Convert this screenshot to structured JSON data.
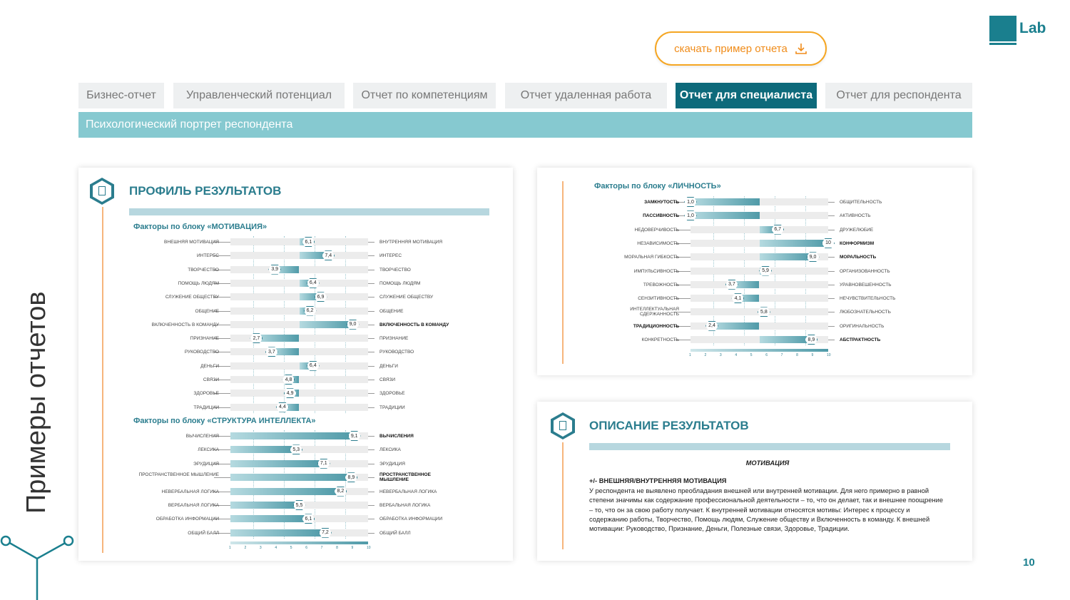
{
  "logo": {
    "text": "Lab"
  },
  "download_button": {
    "label": "скачать пример отчета",
    "icon": "download-icon"
  },
  "tabs": [
    {
      "label": "Бизнес-отчет",
      "active": false
    },
    {
      "label": "Управленческий потенциал",
      "active": false
    },
    {
      "label": "Отчет по компетенциям",
      "active": false
    },
    {
      "label": "Отчет удаленная работа",
      "active": false
    },
    {
      "label": "Отчет для специалиста",
      "active": true
    },
    {
      "label": "Отчет для респондента",
      "active": false
    }
  ],
  "subheader": "Психологический портрет респондента",
  "side_title": "Примеры отчетов",
  "page_number": "10",
  "profile": {
    "title": "ПРОФИЛЬ РЕЗУЛЬТАТОВ"
  },
  "description": {
    "title": "ОПИСАНИЕ РЕЗУЛЬТАТОВ",
    "section": "МОТИВАЦИЯ",
    "heading": "+/- ВНЕШНЯЯ/ВНУТРЕННЯЯ МОТИВАЦИЯ",
    "text": "У респондента не выявлено преобладания внешней или внутренней мотивации. Для него примерно в равной степени значимы как содержание профессиональной деятельности – то, что он делает, так и внешнее поощрение – то, что он за свою работу получает. К внутренней мотивации относятся мотивы: Интерес к процессу и содержанию работы, Творчество, Помощь людям, Служение обществу и Включенность в команду. К внешней мотивации: Руководство, Признание, Деньги, Полезные связи, Здоровье, Традиции."
  },
  "chart_data": [
    {
      "type": "bar",
      "title": "Факторы по блоку «МОТИВАЦИЯ»",
      "mode": "bipolar",
      "xlim": [
        1,
        10
      ],
      "ticks": [
        1,
        2,
        3,
        4,
        5,
        6,
        7,
        8,
        9,
        10
      ],
      "rows": [
        {
          "left": "ВНЕШНЯЯ МОТИВАЦИЯ",
          "right": "ВНУТРЕННЯЯ МОТИВАЦИЯ",
          "value": 6.1,
          "value_label": "6,1"
        },
        {
          "left": "ИНТЕРЕС",
          "right": "ИНТЕРЕС",
          "value": 7.4,
          "value_label": "7,4"
        },
        {
          "left": "ТВОРЧЕСТВО",
          "right": "ТВОРЧЕСТВО",
          "value": 3.9,
          "value_label": "3,9"
        },
        {
          "left": "ПОМОЩЬ ЛЮДЯМ",
          "right": "ПОМОЩЬ ЛЮДЯМ",
          "value": 6.4,
          "value_label": "6,4"
        },
        {
          "left": "СЛУЖЕНИЕ ОБЩЕСТВУ",
          "right": "СЛУЖЕНИЕ ОБЩЕСТВУ",
          "value": 6.9,
          "value_label": "6,9"
        },
        {
          "left": "ОБЩЕНИЕ",
          "right": "ОБЩЕНИЕ",
          "value": 6.2,
          "value_label": "6,2"
        },
        {
          "left": "ВКЛЮЧЕННОСТЬ В КОМАНДУ",
          "right": "ВКЛЮЧЕННОСТЬ В КОМАНДУ",
          "value": 9.0,
          "value_label": "9,0",
          "bold": "right"
        },
        {
          "left": "ПРИЗНАНИЕ",
          "right": "ПРИЗНАНИЕ",
          "value": 2.7,
          "value_label": "2,7"
        },
        {
          "left": "РУКОВОДСТВО",
          "right": "РУКОВОДСТВО",
          "value": 3.7,
          "value_label": "3,7"
        },
        {
          "left": "ДЕНЬГИ",
          "right": "ДЕНЬГИ",
          "value": 6.4,
          "value_label": "6,4"
        },
        {
          "left": "СВЯЗИ",
          "right": "СВЯЗИ",
          "value": 4.8,
          "value_label": "4,8"
        },
        {
          "left": "ЗДОРОВЬЕ",
          "right": "ЗДОРОВЬЕ",
          "value": 4.9,
          "value_label": "4,9"
        },
        {
          "left": "ТРАДИЦИИ",
          "right": "ТРАДИЦИИ",
          "value": 4.4,
          "value_label": "4,4"
        }
      ]
    },
    {
      "type": "bar",
      "title": "Факторы по блоку «СТРУКТУРА ИНТЕЛЛЕКТА»",
      "mode": "from-min",
      "xlim": [
        1,
        10
      ],
      "ticks": [
        1,
        2,
        3,
        4,
        5,
        6,
        7,
        8,
        9,
        10
      ],
      "rows": [
        {
          "left": "ВЫЧИСЛЕНИЯ",
          "right": "ВЫЧИСЛЕНИЯ",
          "value": 9.1,
          "value_label": "9,1",
          "bold": "right"
        },
        {
          "left": "ЛЕКСИКА",
          "right": "ЛЕКСИКА",
          "value": 5.3,
          "value_label": "5,3"
        },
        {
          "left": "ЭРУДИЦИЯ",
          "right": "ЭРУДИЦИЯ",
          "value": 7.1,
          "value_label": "7,1"
        },
        {
          "left": "ПРОСТРАНСТВЕННОЕ МЫШЛЕНИЕ",
          "right": "ПРОСТРАНСТВЕННОЕ МЫШЛЕНИЕ",
          "value": 8.9,
          "value_label": "8,9",
          "bold": "right"
        },
        {
          "left": "НЕВЕРБАЛЬНАЯ ЛОГИКА",
          "right": "НЕВЕРБАЛЬНАЯ ЛОГИКА",
          "value": 8.2,
          "value_label": "8,2"
        },
        {
          "left": "ВЕРБАЛЬНАЯ ЛОГИКА",
          "right": "ВЕРБАЛЬНАЯ ЛОГИКА",
          "value": 5.5,
          "value_label": "5,5"
        },
        {
          "left": "ОБРАБОТКА ИНФОРМАЦИИ",
          "right": "ОБРАБОТКА ИНФОРМАЦИИ",
          "value": 6.1,
          "value_label": "6,1"
        },
        {
          "left": "ОБЩИЙ БАЛЛ",
          "right": "ОБЩИЙ БАЛЛ",
          "value": 7.2,
          "value_label": "7,2"
        }
      ]
    },
    {
      "type": "bar",
      "title": "Факторы по блоку «ЛИЧНОСТЬ»",
      "mode": "bipolar",
      "xlim": [
        1,
        10
      ],
      "ticks": [
        1,
        2,
        3,
        4,
        5,
        6,
        7,
        8,
        9,
        10
      ],
      "rows": [
        {
          "left": "ЗАМКНУТОСТЬ",
          "right": "ОБЩИТЕЛЬНОСТЬ",
          "value": 1.0,
          "value_label": "1,0",
          "bold": "left"
        },
        {
          "left": "ПАССИВНОСТЬ",
          "right": "АКТИВНОСТЬ",
          "value": 1.0,
          "value_label": "1,0",
          "bold": "left"
        },
        {
          "left": "НЕДОВЕРЧИВОСТЬ",
          "right": "ДРУЖЕЛЮБИЕ",
          "value": 6.7,
          "value_label": "6,7"
        },
        {
          "left": "НЕЗАВИСИМОСТЬ",
          "right": "КОНФОРМИЗМ",
          "value": 10,
          "value_label": "10",
          "bold": "right"
        },
        {
          "left": "МОРАЛЬНАЯ ГИБКОСТЬ",
          "right": "МОРАЛЬНОСТЬ",
          "value": 9.0,
          "value_label": "9,0",
          "bold": "right"
        },
        {
          "left": "ИМПУЛЬСИВНОСТЬ",
          "right": "ОРГАНИЗОВАННОСТЬ",
          "value": 5.9,
          "value_label": "5,9"
        },
        {
          "left": "ТРЕВОЖНОСТЬ",
          "right": "УРАВНОВЕШЕННОСТЬ",
          "value": 3.7,
          "value_label": "3,7"
        },
        {
          "left": "СЕНЗИТИВНОСТЬ",
          "right": "НЕЧУВСТВИТЕЛЬНОСТЬ",
          "value": 4.1,
          "value_label": "4,1"
        },
        {
          "left": "ИНТЕЛЛЕКТУАЛЬНАЯ СДЕРЖАННОСТЬ",
          "right": "ЛЮБОЗНАТЕЛЬНОСТЬ",
          "value": 5.8,
          "value_label": "5,8"
        },
        {
          "left": "ТРАДИЦИОННОСТЬ",
          "right": "ОРИГИНАЛЬНОСТЬ",
          "value": 2.4,
          "value_label": "2,4",
          "bold": "left"
        },
        {
          "left": "КОНКРЕТНОСТЬ",
          "right": "АБСТРАКТНОСТЬ",
          "value": 8.9,
          "value_label": "8,9",
          "bold": "right"
        }
      ]
    }
  ]
}
